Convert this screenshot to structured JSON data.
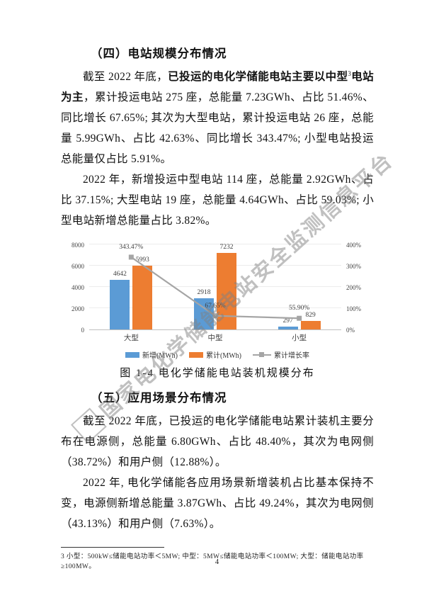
{
  "page": {
    "number": "4"
  },
  "watermark": {
    "text": "国家电化学储能电站安全监测信息平台"
  },
  "sections": {
    "s4": {
      "heading": "（四）电站规模分布情况",
      "p1": {
        "pre": "截至 2022 年底，",
        "bold1": "已投运的电化学储能电站主要以中型",
        "sup": "3",
        "bold2": "电站为主",
        "rest": "，累计投运电站 275 座，总能量 7.23GWh、占比 51.46%、同比增长 67.65%; 其次为大型电站，累计投运电站 26 座，总能量 5.99GWh、占比 42.63%、同比增长 343.47%; 小型电站投运总能量仅占比 5.91%。"
      },
      "p2": "2022 年，新增投运中型电站 114 座，总能量 2.92GWh、占比 37.15%; 大型电站 19 座，总能量 4.64GWh、占比 59.03%; 小型电站新增总能量占比 3.82%。"
    },
    "s5": {
      "heading": "（五）应用场景分布情况",
      "p1": "截至 2022 年底，已投运的电化学储能电站累计装机主要分布在电源侧，总能量 6.80GWh、占比 48.40%，其次为电网侧（38.72%）和用户侧（12.88%）。",
      "p2": "2022 年, 电化学储能各应用场景新增装机占比基本保持不变，电源侧新增总能量 3.87GWh、占比 49.24%，其次为电网侧（43.13%）和用户侧（7.63%）。"
    }
  },
  "chart_data": {
    "type": "bar",
    "subtype": "bar-line-combo",
    "title": "",
    "caption": "图 1-4 电化学储能电站装机规模分布",
    "categories": [
      "大型",
      "中型",
      "小型"
    ],
    "series": [
      {
        "name": "新增(MWh)",
        "type": "bar",
        "color": "#5B9BD5",
        "values": [
          4642,
          2918,
          297
        ]
      },
      {
        "name": "累计(MWh)",
        "type": "bar",
        "color": "#ED7D31",
        "values": [
          5993,
          7232,
          829
        ]
      },
      {
        "name": "累计增长率",
        "type": "line",
        "color": "#A5A5A5",
        "values_pct": [
          343.47,
          67.65,
          55.9
        ],
        "labels": [
          "343.47%",
          "67.65%",
          "55.90%"
        ]
      }
    ],
    "left_axis": {
      "min": 0,
      "max": 8000,
      "ticks": [
        "0",
        "2000",
        "4000",
        "6000",
        "8000"
      ]
    },
    "right_axis": {
      "min_pct": 0,
      "max_pct": 400,
      "ticks": [
        "0%",
        "100%",
        "200%",
        "300%",
        "400%"
      ]
    },
    "grid": true,
    "legend_position": "bottom"
  },
  "footnote": {
    "text": "3 小型：500kW≤储能电站功率＜5MW; 中型：5MW≤储能电站功率＜100MW; 大型：储能电站功率≥100MW。"
  }
}
